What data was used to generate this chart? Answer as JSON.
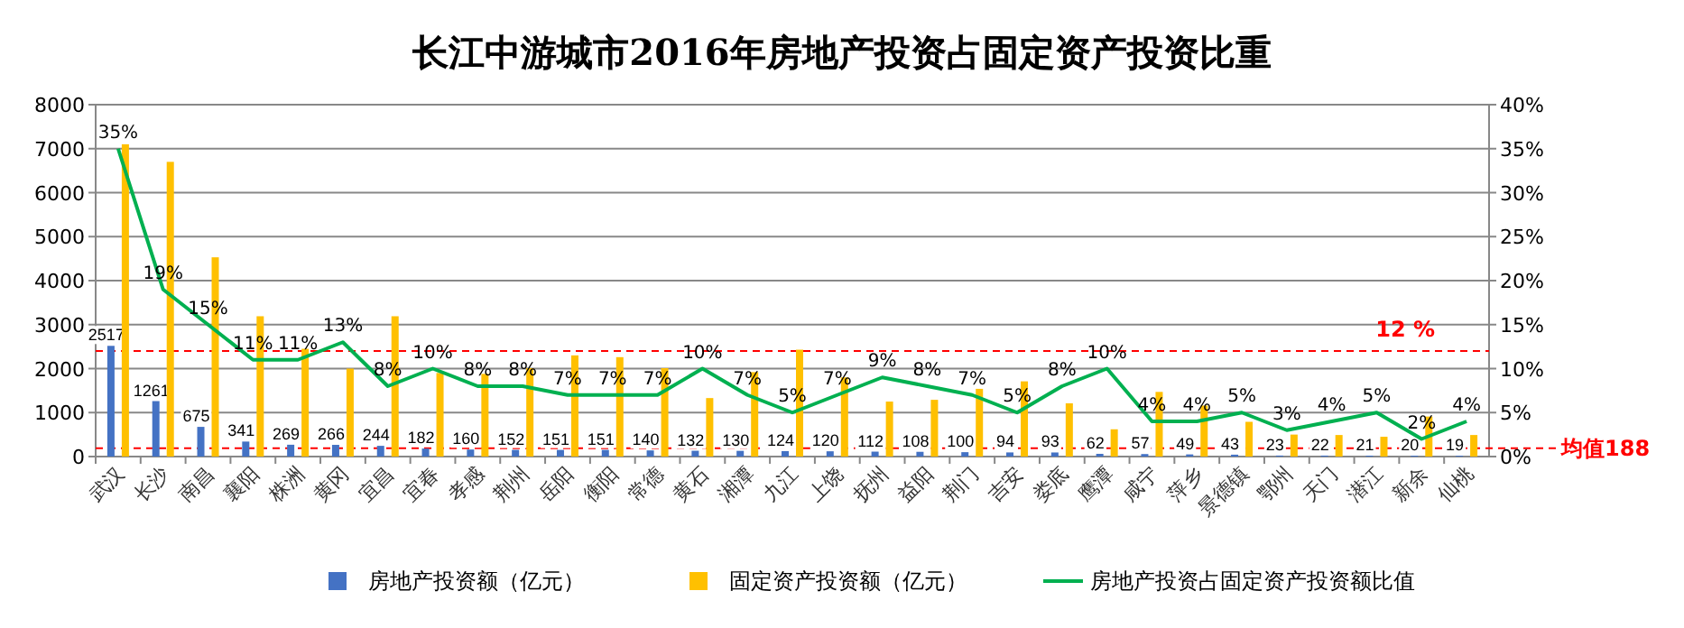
{
  "chart_data": {
    "type": "bar",
    "title": "长江中游城市2016年房地产投资占固定资产投资比重",
    "categories": [
      "武汉",
      "长沙",
      "南昌",
      "襄阳",
      "株洲",
      "黄冈",
      "宜昌",
      "宜春",
      "孝感",
      "荆州",
      "岳阳",
      "衡阳",
      "常德",
      "黄石",
      "湘潭",
      "九江",
      "上饶",
      "抚州",
      "益阳",
      "荆门",
      "吉安",
      "娄底",
      "鹰潭",
      "咸宁",
      "萍乡",
      "景德镇",
      "鄂州",
      "天门",
      "潜江",
      "新余",
      "仙桃"
    ],
    "series": [
      {
        "name": "房地产投资额（亿元）",
        "color": "#4472c4",
        "values": [
          2517,
          1261,
          675,
          341,
          269,
          266,
          244,
          182,
          160,
          152,
          151,
          151,
          140,
          132,
          130,
          124,
          120,
          112,
          108,
          100,
          94,
          93,
          62,
          57,
          49,
          43,
          23,
          22,
          21,
          20,
          19
        ],
        "value_labels": [
          "2517",
          "1261",
          "675",
          "341",
          "269",
          "266",
          "244",
          "182",
          "160",
          "152",
          "151",
          "151",
          "140",
          "132",
          "130",
          "124",
          "120",
          "112",
          "108",
          "100",
          "94",
          "93",
          "62",
          "57",
          "49",
          "43",
          "23",
          "22",
          "21",
          "20",
          "19"
        ]
      },
      {
        "name": "固定资产投资额（亿元）",
        "color": "#ffc000",
        "values": [
          7100,
          6700,
          4530,
          3190,
          2450,
          2000,
          3190,
          1900,
          1880,
          2010,
          2300,
          2260,
          2010,
          1330,
          1920,
          2430,
          1800,
          1250,
          1290,
          1540,
          1710,
          1210,
          620,
          1470,
          1160,
          790,
          500,
          490,
          450,
          910,
          490
        ]
      },
      {
        "name": "房地产投资占固定资产投资额比值",
        "type": "line",
        "axis": "y2",
        "color": "#00b050",
        "values": [
          35,
          19,
          15,
          11,
          11,
          13,
          8,
          10,
          8,
          8,
          7,
          7,
          7,
          10,
          7,
          5,
          7,
          9,
          8,
          7,
          5,
          8,
          10,
          4,
          4,
          5,
          3,
          4,
          5,
          2,
          4
        ],
        "value_labels": [
          "35%",
          "19%",
          "15%",
          "11%",
          "11%",
          "13%",
          "8%",
          "10%",
          "8%",
          "8%",
          "7%",
          "7%",
          "7%",
          "10%",
          "7%",
          "5%",
          "7%",
          "9%",
          "8%",
          "7%",
          "5%",
          "8%",
          "10%",
          "4%",
          "4%",
          "5%",
          "3%",
          "4%",
          "5%",
          "2%",
          "4%"
        ]
      }
    ],
    "ylim": [
      0,
      8000
    ],
    "yticks": [
      0,
      1000,
      2000,
      3000,
      4000,
      5000,
      6000,
      7000,
      8000
    ],
    "y2lim": [
      0,
      40
    ],
    "y2ticks": [
      {
        "value": 0,
        "label": "0%"
      },
      {
        "value": 5,
        "label": "5%"
      },
      {
        "value": 10,
        "label": "10%"
      },
      {
        "value": 15,
        "label": "15%"
      },
      {
        "value": 20,
        "label": "20%"
      },
      {
        "value": 25,
        "label": "25%"
      },
      {
        "value": 30,
        "label": "30%"
      },
      {
        "value": 35,
        "label": "35%"
      },
      {
        "value": 40,
        "label": "40%"
      }
    ],
    "ref_lines": [
      {
        "axis": "y2",
        "value": 12,
        "label": "12 %",
        "color": "#ff0000",
        "line_style": "dashed"
      },
      {
        "axis": "y",
        "value": 188,
        "label": "均值188",
        "color": "#ff0000",
        "line_style": "dashed"
      }
    ],
    "grid": "y",
    "legend": "bottom",
    "marker": "none"
  }
}
